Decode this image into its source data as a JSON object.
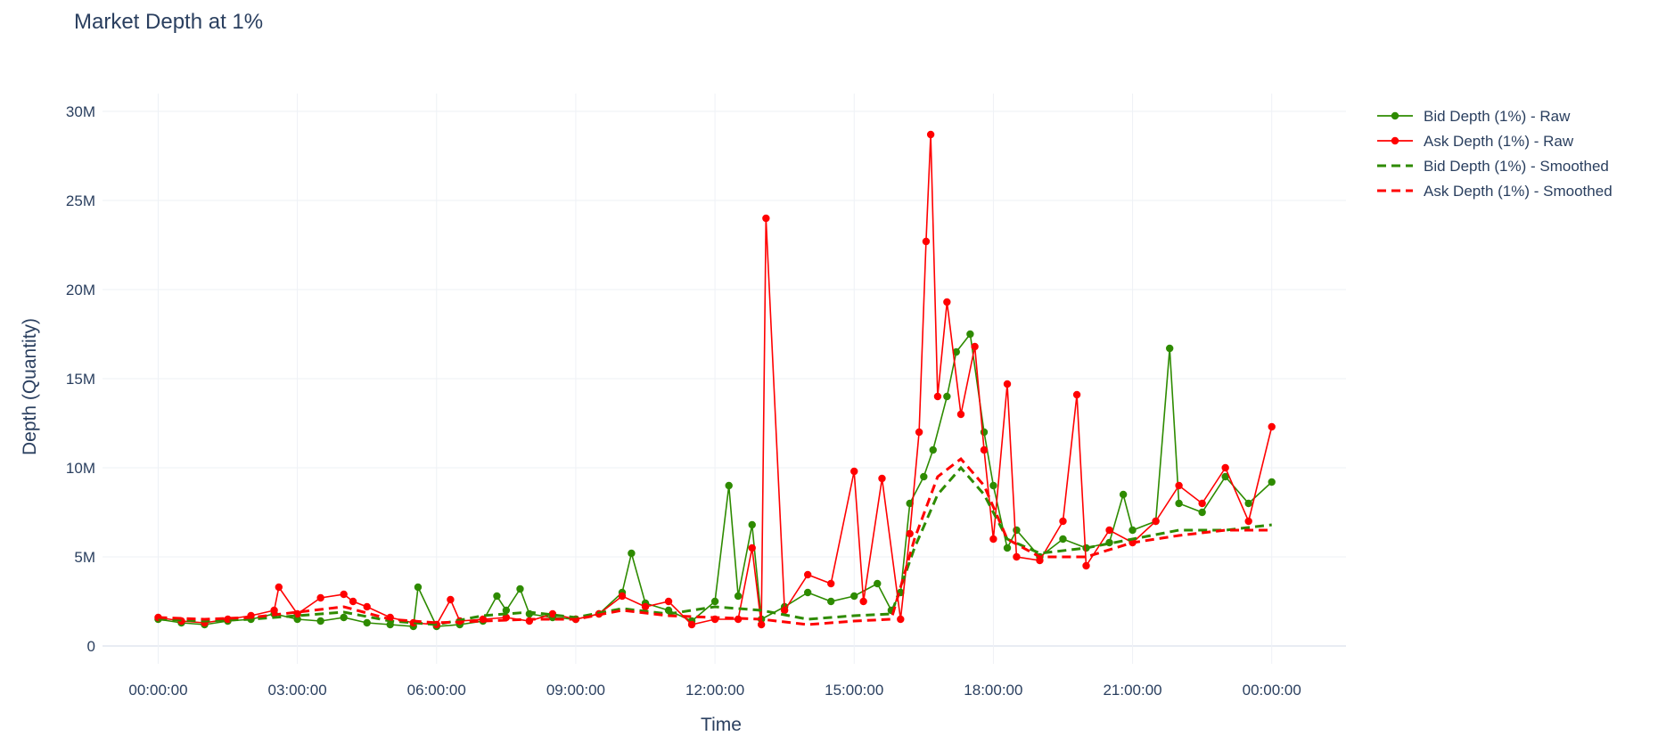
{
  "chart_data": {
    "type": "line",
    "title": "Market Depth at 1%",
    "xlabel": "Time",
    "ylabel": "Depth (Quantity)",
    "x_ticks": [
      "00:00:00",
      "03:00:00",
      "06:00:00",
      "09:00:00",
      "12:00:00",
      "15:00:00",
      "18:00:00",
      "21:00:00",
      "00:00:00"
    ],
    "y_ticks": [
      "0",
      "5M",
      "10M",
      "15M",
      "20M",
      "25M",
      "30M"
    ],
    "ylim": [
      -1000000,
      31000000
    ],
    "xlim_hours": [
      -1.2,
      25.6
    ],
    "grid": true,
    "legend_position": "top-right",
    "colors": {
      "bid": "#2e8b00",
      "ask": "#ff0000"
    },
    "series": [
      {
        "name": "Bid Depth (1%) - Raw",
        "style": "line+markers",
        "color": "#2e8b00",
        "x_hours": [
          0,
          0.5,
          1,
          1.5,
          2,
          2.5,
          3,
          3.5,
          4,
          4.5,
          5,
          5.5,
          5.6,
          6,
          6.5,
          7,
          7.3,
          7.5,
          7.8,
          8,
          8.5,
          9,
          9.5,
          10,
          10.2,
          10.5,
          11,
          11.5,
          12,
          12.3,
          12.5,
          12.8,
          13,
          13.5,
          14,
          14.5,
          15,
          15.5,
          15.8,
          16,
          16.2,
          16.5,
          16.7,
          17,
          17.2,
          17.5,
          17.8,
          18,
          18.3,
          18.5,
          19,
          19.5,
          20,
          20.5,
          20.8,
          21,
          21.5,
          21.8,
          22,
          22.5,
          23,
          23.5,
          24
        ],
        "values": [
          1500000,
          1300000,
          1200000,
          1400000,
          1500000,
          1800000,
          1500000,
          1400000,
          1600000,
          1300000,
          1200000,
          1100000,
          3300000,
          1100000,
          1200000,
          1400000,
          2800000,
          2000000,
          3200000,
          1800000,
          1600000,
          1500000,
          1800000,
          3000000,
          5200000,
          2400000,
          2000000,
          1400000,
          2500000,
          9000000,
          2800000,
          6800000,
          1500000,
          2200000,
          3000000,
          2500000,
          2800000,
          3500000,
          2000000,
          3000000,
          8000000,
          9500000,
          11000000,
          14000000,
          16500000,
          17500000,
          12000000,
          9000000,
          5500000,
          6500000,
          5000000,
          6000000,
          5500000,
          5800000,
          8500000,
          6500000,
          7000000,
          16700000,
          8000000,
          7500000,
          9500000,
          8000000,
          9200000
        ]
      },
      {
        "name": "Ask Depth (1%) - Raw",
        "style": "line+markers",
        "color": "#ff0000",
        "x_hours": [
          0,
          0.5,
          1,
          1.5,
          2,
          2.5,
          2.6,
          3,
          3.5,
          4,
          4.2,
          4.5,
          5,
          5.5,
          6,
          6.3,
          6.5,
          7,
          7.5,
          8,
          8.5,
          9,
          9.5,
          10,
          10.5,
          11,
          11.5,
          12,
          12.5,
          12.8,
          13.0,
          13.1,
          13.5,
          14,
          14.5,
          15,
          15.2,
          15.6,
          16,
          16.2,
          16.4,
          16.55,
          16.65,
          16.8,
          17,
          17.3,
          17.6,
          17.8,
          18,
          18.3,
          18.5,
          19,
          19.5,
          19.8,
          20,
          20.5,
          21,
          21.5,
          22,
          22.5,
          23,
          23.5,
          24
        ],
        "values": [
          1600000,
          1400000,
          1300000,
          1500000,
          1700000,
          2000000,
          3300000,
          1800000,
          2700000,
          2900000,
          2500000,
          2200000,
          1600000,
          1300000,
          1200000,
          2600000,
          1400000,
          1500000,
          1600000,
          1400000,
          1800000,
          1500000,
          1800000,
          2800000,
          2200000,
          2500000,
          1200000,
          1500000,
          1500000,
          5500000,
          1200000,
          24000000,
          2000000,
          4000000,
          3500000,
          9800000,
          2500000,
          9400000,
          1500000,
          6300000,
          12000000,
          22700000,
          28700000,
          14000000,
          19300000,
          13000000,
          16800000,
          11000000,
          6000000,
          14700000,
          5000000,
          4800000,
          7000000,
          14100000,
          4500000,
          6500000,
          5800000,
          7000000,
          9000000,
          8000000,
          10000000,
          7000000,
          12300000
        ]
      },
      {
        "name": "Bid Depth (1%) - Smoothed",
        "style": "dash",
        "color": "#2e8b00",
        "x_hours": [
          0,
          1,
          2,
          3,
          4,
          5,
          6,
          7,
          8,
          9,
          10,
          11,
          12,
          13,
          14,
          15,
          15.8,
          16.3,
          16.8,
          17.3,
          17.8,
          18.3,
          19,
          20,
          21,
          22,
          23,
          24
        ],
        "values": [
          1500000,
          1400000,
          1500000,
          1700000,
          1900000,
          1400000,
          1200000,
          1700000,
          1900000,
          1600000,
          2100000,
          1800000,
          2200000,
          2000000,
          1500000,
          1700000,
          1800000,
          5500000,
          8500000,
          10000000,
          8500000,
          6000000,
          5200000,
          5500000,
          6000000,
          6500000,
          6500000,
          6800000
        ]
      },
      {
        "name": "Ask Depth (1%) - Smoothed",
        "style": "dash",
        "color": "#ff0000",
        "x_hours": [
          0,
          1,
          2,
          3,
          4,
          5,
          6,
          7,
          8,
          9,
          10,
          11,
          12,
          13,
          14,
          15,
          15.8,
          16.3,
          16.8,
          17.3,
          17.8,
          18.3,
          19,
          20,
          21,
          22,
          23,
          24
        ],
        "values": [
          1600000,
          1500000,
          1600000,
          1900000,
          2200000,
          1500000,
          1300000,
          1400000,
          1500000,
          1500000,
          2000000,
          1700000,
          1600000,
          1500000,
          1200000,
          1400000,
          1500000,
          6000000,
          9500000,
          10500000,
          9000000,
          6000000,
          5000000,
          5000000,
          5800000,
          6200000,
          6500000,
          6500000
        ]
      }
    ]
  }
}
